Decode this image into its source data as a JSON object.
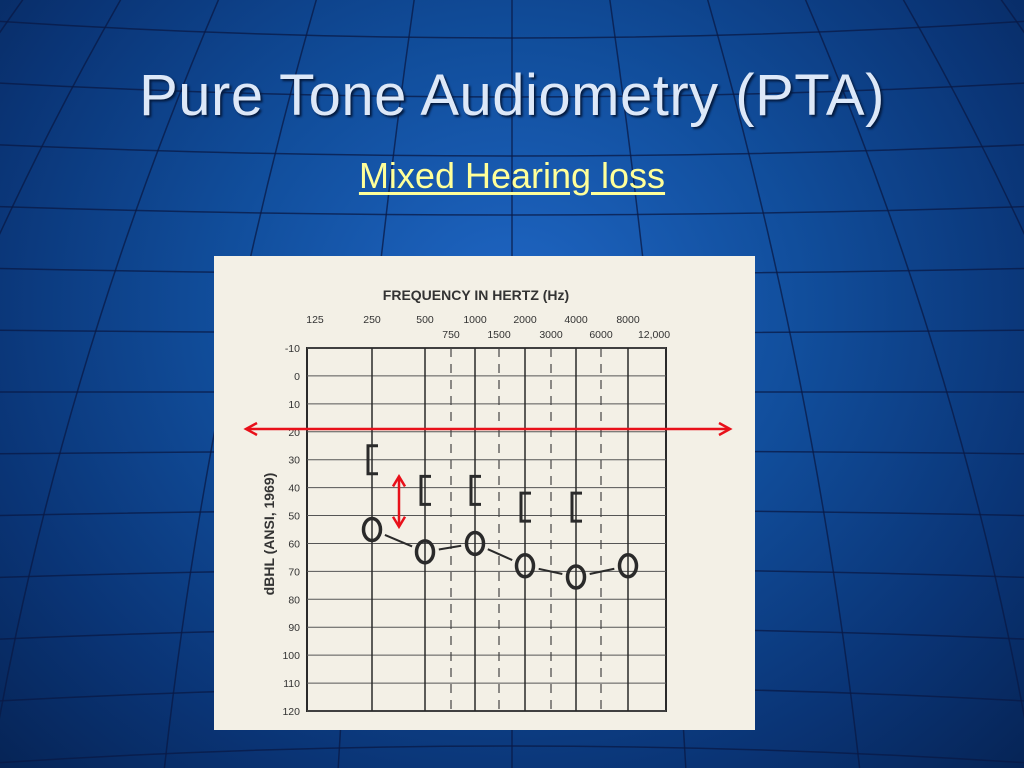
{
  "slide": {
    "title": "Pure Tone Audiometry (PTA)",
    "subtitle": "Mixed Hearing loss"
  },
  "colors": {
    "accent_subtitle": "#ffff99",
    "annotation_red": "#e8101a"
  },
  "chart_data": {
    "type": "scatter",
    "title": "FREQUENCY IN HERTZ (Hz)",
    "ylabel": "dBHL (ANSI, 1969)",
    "x_ticks_top": [
      "125",
      "250",
      "500",
      "1000",
      "2000",
      "4000",
      "8000"
    ],
    "x_ticks_bottom": [
      "750",
      "1500",
      "3000",
      "6000",
      "12,000"
    ],
    "y_ticks": [
      "-10",
      "0",
      "10",
      "20",
      "30",
      "40",
      "50",
      "60",
      "70",
      "80",
      "90",
      "100",
      "110",
      "120"
    ],
    "ylim": [
      -10,
      120
    ],
    "y_inverted": true,
    "series": [
      {
        "marker": "O",
        "x": [
          250,
          500,
          1000,
          2000,
          4000,
          8000
        ],
        "y": [
          55,
          63,
          60,
          68,
          72,
          68
        ]
      },
      {
        "marker": "[",
        "x": [
          250,
          500,
          1000,
          2000,
          4000
        ],
        "y": [
          30,
          41,
          41,
          47,
          47
        ]
      }
    ],
    "annotations": [
      {
        "type": "horizontal-double-arrow",
        "y": 19,
        "color": "#e8101a"
      },
      {
        "type": "vertical-double-arrow",
        "x": 375,
        "y_from": 36,
        "y_to": 54,
        "color": "#e8101a"
      }
    ]
  }
}
